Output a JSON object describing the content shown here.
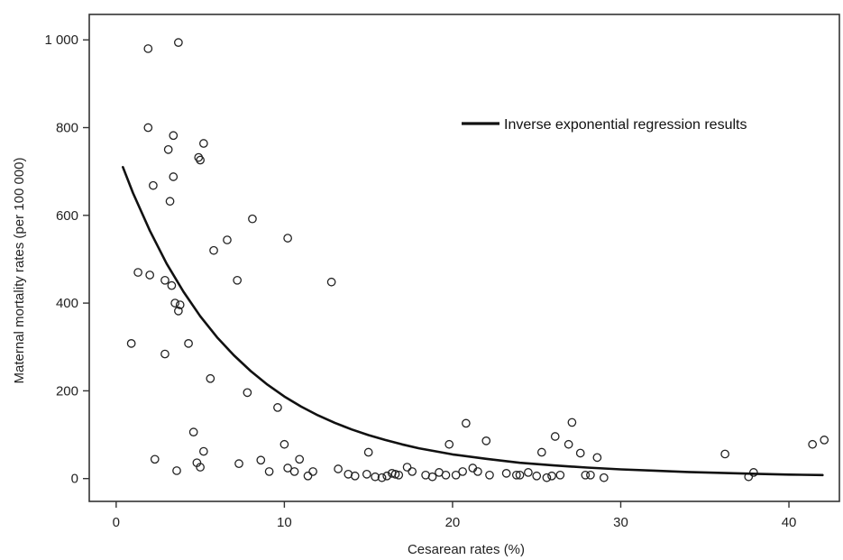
{
  "chart_data": {
    "type": "scatter",
    "title": "",
    "xlabel": "Cesarean rates (%)",
    "ylabel": "Maternal mortality rates (per 100 000)",
    "xlim": [
      -1.6,
      43.0
    ],
    "ylim": [
      -52,
      1058
    ],
    "xticks": [
      0,
      10,
      20,
      30,
      40
    ],
    "xtick_labels": [
      "0",
      "10",
      "20",
      "30",
      "40"
    ],
    "yticks": [
      0,
      200,
      400,
      600,
      800,
      1000
    ],
    "ytick_labels": [
      "0",
      "200",
      "400",
      "600",
      "800",
      "1 000"
    ],
    "grid": false,
    "legend_position": "top-right",
    "legend": [
      "Inverse exponential regression results"
    ],
    "series": [
      {
        "type": "scatter",
        "values": [
          [
            1.9,
            980
          ],
          [
            3.7,
            994
          ],
          [
            1.9,
            800
          ],
          [
            3.4,
            782
          ],
          [
            5.2,
            764
          ],
          [
            3.1,
            750
          ],
          [
            4.9,
            732
          ],
          [
            5.0,
            726
          ],
          [
            3.4,
            688
          ],
          [
            2.2,
            668
          ],
          [
            3.2,
            632
          ],
          [
            8.1,
            592
          ],
          [
            6.6,
            544
          ],
          [
            10.2,
            548
          ],
          [
            5.8,
            520
          ],
          [
            1.3,
            470
          ],
          [
            2.0,
            464
          ],
          [
            2.9,
            452
          ],
          [
            3.3,
            440
          ],
          [
            7.2,
            452
          ],
          [
            12.8,
            448
          ],
          [
            3.5,
            400
          ],
          [
            3.8,
            396
          ],
          [
            3.7,
            382
          ],
          [
            0.9,
            308
          ],
          [
            4.3,
            308
          ],
          [
            2.9,
            284
          ],
          [
            5.6,
            228
          ],
          [
            7.8,
            196
          ],
          [
            9.6,
            162
          ],
          [
            4.6,
            106
          ],
          [
            5.2,
            62
          ],
          [
            2.3,
            44
          ],
          [
            4.8,
            36
          ],
          [
            5.0,
            26
          ],
          [
            3.6,
            18
          ],
          [
            7.3,
            34
          ],
          [
            8.6,
            42
          ],
          [
            9.1,
            16
          ],
          [
            10.0,
            78
          ],
          [
            10.2,
            24
          ],
          [
            10.6,
            16
          ],
          [
            10.9,
            44
          ],
          [
            11.4,
            6
          ],
          [
            11.7,
            16
          ],
          [
            13.2,
            22
          ],
          [
            13.8,
            10
          ],
          [
            14.2,
            6
          ],
          [
            15.0,
            60
          ],
          [
            14.9,
            10
          ],
          [
            15.4,
            4
          ],
          [
            15.8,
            2
          ],
          [
            16.1,
            6
          ],
          [
            16.4,
            12
          ],
          [
            16.6,
            10
          ],
          [
            16.8,
            8
          ],
          [
            17.3,
            26
          ],
          [
            17.6,
            16
          ],
          [
            18.4,
            8
          ],
          [
            18.8,
            4
          ],
          [
            19.2,
            14
          ],
          [
            19.6,
            8
          ],
          [
            19.8,
            78
          ],
          [
            20.2,
            8
          ],
          [
            20.6,
            16
          ],
          [
            20.8,
            126
          ],
          [
            21.2,
            24
          ],
          [
            21.5,
            16
          ],
          [
            22.0,
            86
          ],
          [
            22.2,
            8
          ],
          [
            23.2,
            12
          ],
          [
            23.8,
            8
          ],
          [
            24.0,
            8
          ],
          [
            24.5,
            14
          ],
          [
            25.0,
            6
          ],
          [
            25.3,
            60
          ],
          [
            25.6,
            2
          ],
          [
            25.9,
            6
          ],
          [
            26.1,
            96
          ],
          [
            26.4,
            8
          ],
          [
            26.9,
            78
          ],
          [
            27.1,
            128
          ],
          [
            27.6,
            58
          ],
          [
            27.9,
            8
          ],
          [
            28.2,
            8
          ],
          [
            28.6,
            48
          ],
          [
            29.0,
            2
          ],
          [
            36.2,
            56
          ],
          [
            37.6,
            4
          ],
          [
            37.9,
            14
          ],
          [
            41.4,
            78
          ],
          [
            42.1,
            88
          ]
        ]
      },
      {
        "name": "Inverse exponential regression results",
        "type": "line",
        "values": [
          [
            0.4,
            710
          ],
          [
            1,
            651
          ],
          [
            2,
            565
          ],
          [
            3,
            490
          ],
          [
            4,
            426
          ],
          [
            5,
            370
          ],
          [
            6,
            322
          ],
          [
            7,
            281
          ],
          [
            8,
            245
          ],
          [
            9,
            214
          ],
          [
            10,
            187
          ],
          [
            11,
            164
          ],
          [
            12,
            144
          ],
          [
            13,
            127
          ],
          [
            14,
            112
          ],
          [
            15,
            99
          ],
          [
            16,
            88
          ],
          [
            17,
            78
          ],
          [
            18,
            69
          ],
          [
            19,
            62
          ],
          [
            20,
            55
          ],
          [
            22,
            45
          ],
          [
            24,
            36
          ],
          [
            26,
            30
          ],
          [
            28,
            25
          ],
          [
            30,
            21
          ],
          [
            32,
            18
          ],
          [
            34,
            15
          ],
          [
            36,
            13
          ],
          [
            38,
            11
          ],
          [
            40,
            9
          ],
          [
            42,
            8
          ]
        ]
      }
    ]
  }
}
